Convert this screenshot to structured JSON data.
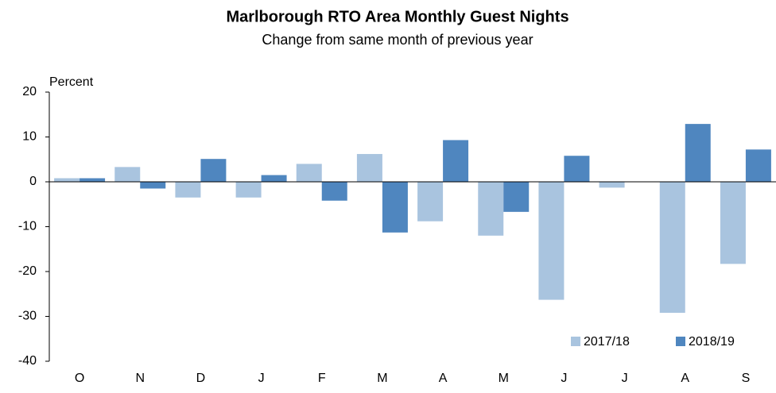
{
  "chart_data": {
    "type": "bar",
    "title": "Marlborough RTO Area Monthly Guest Nights",
    "subtitle": "Change from same month of previous year",
    "y_label": "Percent",
    "categories": [
      "O",
      "N",
      "D",
      "J",
      "F",
      "M",
      "A",
      "M",
      "J",
      "J",
      "A",
      "S"
    ],
    "series": [
      {
        "name": "2017/18",
        "color": "#a9c4df",
        "values": [
          0.8,
          3.3,
          -3.5,
          -3.5,
          4.0,
          6.2,
          -8.8,
          -12.0,
          -26.3,
          -1.3,
          -29.2,
          -18.3
        ]
      },
      {
        "name": "2018/19",
        "color": "#4f86bf",
        "values": [
          0.8,
          -1.5,
          5.1,
          1.5,
          -4.2,
          -11.3,
          9.3,
          -6.7,
          5.8,
          null,
          12.9,
          7.2
        ]
      }
    ],
    "ylim": [
      -40,
      20
    ],
    "yticks": [
      -40,
      -30,
      -20,
      -10,
      0,
      10,
      20
    ],
    "grid": false,
    "legend": "bottom-right"
  }
}
